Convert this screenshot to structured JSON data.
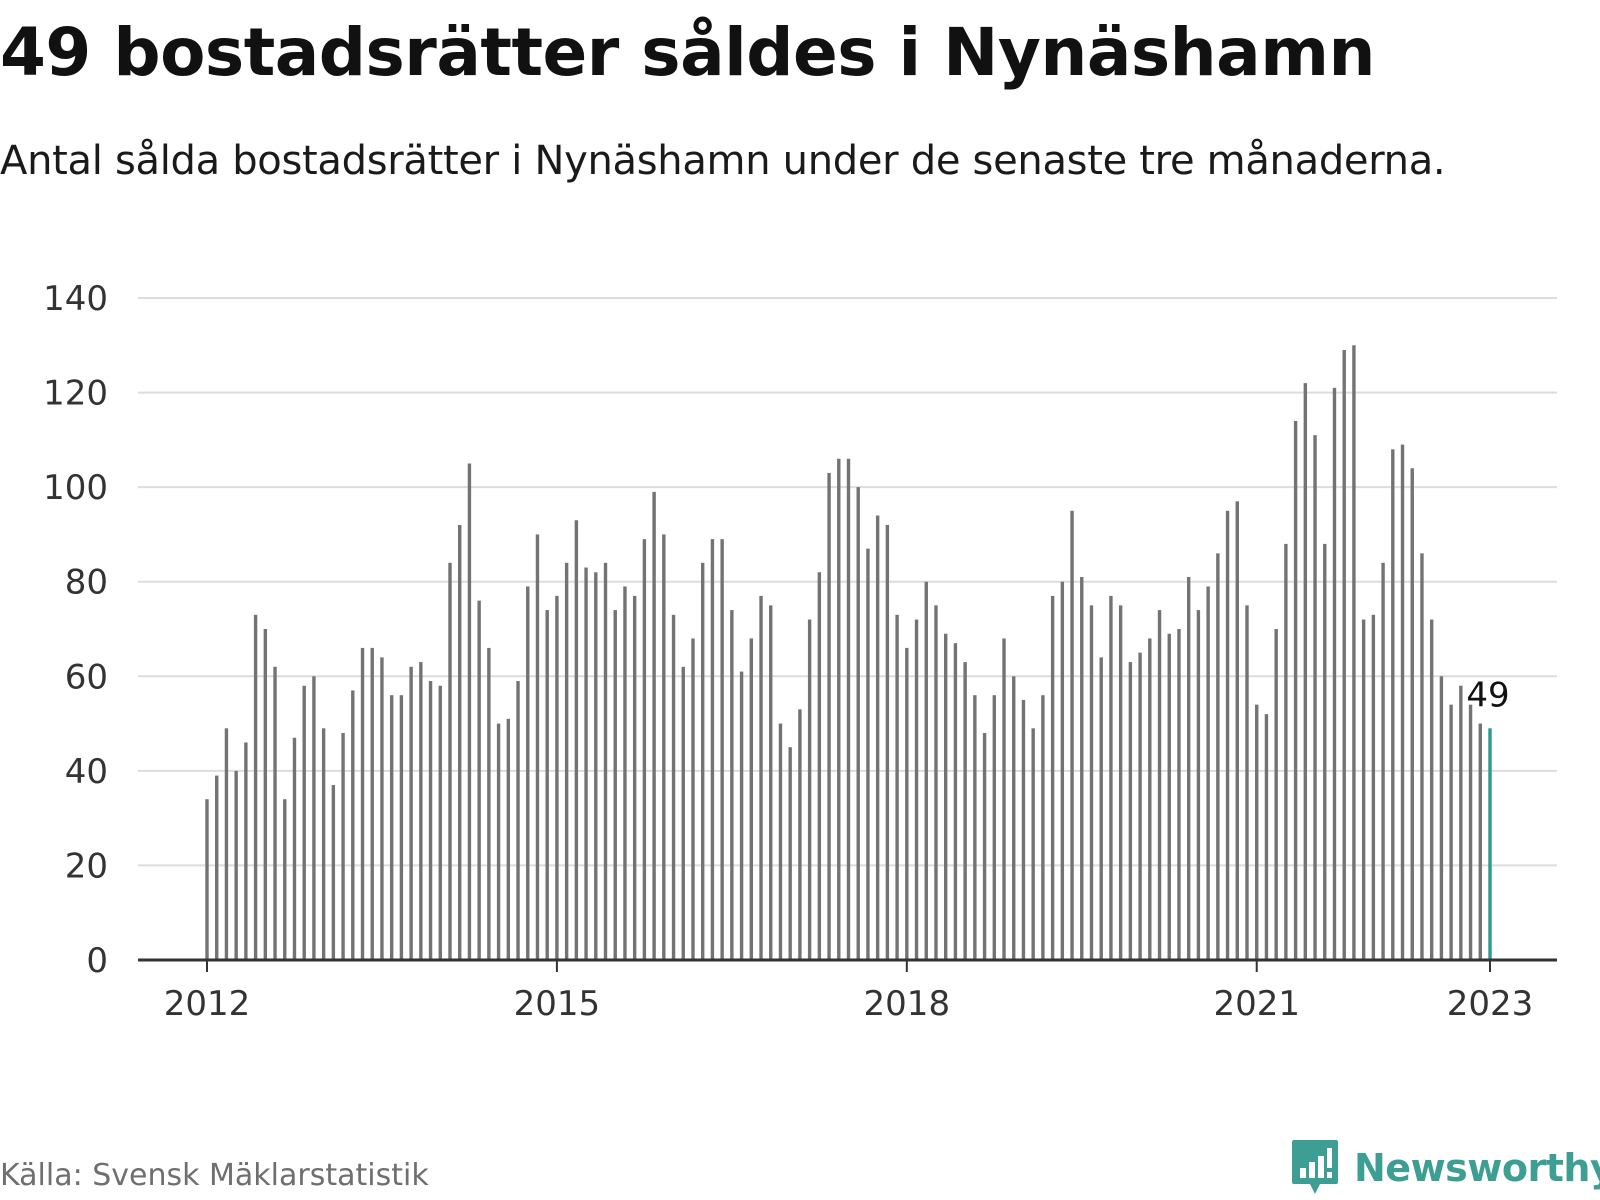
{
  "header": {
    "title": "49 bostadsrätter såldes i Nynäshamn",
    "subtitle": "Antal sålda bostadsrätter i Nynäshamn under de senaste tre månaderna."
  },
  "footer": {
    "source": "Källa: Svensk Mäklarstatistik",
    "brand": "Newsworthy"
  },
  "colors": {
    "bar": "#737373",
    "highlight": "#2a9d8f",
    "grid": "#dddddd",
    "axis": "#333333",
    "brand": "#3d9f93"
  },
  "chart_data": {
    "type": "bar",
    "title": "49 bostadsrätter såldes i Nynäshamn",
    "subtitle": "Antal sålda bostadsrätter i Nynäshamn under de senaste tre månaderna.",
    "xlabel": "",
    "ylabel": "",
    "ylim": [
      0,
      140
    ],
    "yticks": [
      0,
      20,
      40,
      60,
      80,
      100,
      120,
      140
    ],
    "xticks": [
      {
        "label": "2012",
        "date": "2012-01"
      },
      {
        "label": "2015",
        "date": "2015-01"
      },
      {
        "label": "2018",
        "date": "2018-01"
      },
      {
        "label": "2021",
        "date": "2021-01"
      },
      {
        "label": "2023",
        "date": "2023-01"
      }
    ],
    "grid": true,
    "start": "2012-01",
    "end": "2023-01",
    "values": [
      34,
      39,
      49,
      40,
      46,
      73,
      70,
      62,
      34,
      47,
      58,
      60,
      49,
      37,
      48,
      57,
      66,
      66,
      64,
      56,
      56,
      62,
      63,
      59,
      58,
      84,
      92,
      105,
      76,
      66,
      50,
      51,
      59,
      79,
      90,
      74,
      77,
      84,
      93,
      83,
      82,
      84,
      74,
      79,
      77,
      89,
      99,
      90,
      73,
      62,
      68,
      84,
      89,
      89,
      74,
      61,
      68,
      77,
      75,
      50,
      45,
      53,
      72,
      82,
      103,
      106,
      106,
      100,
      87,
      94,
      92,
      73,
      66,
      72,
      80,
      75,
      69,
      67,
      63,
      56,
      48,
      56,
      68,
      60,
      55,
      49,
      56,
      77,
      80,
      95,
      81,
      75,
      64,
      77,
      75,
      63,
      65,
      68,
      74,
      69,
      70,
      81,
      74,
      79,
      86,
      95,
      97,
      75,
      54,
      52,
      70,
      88,
      114,
      122,
      111,
      88,
      121,
      129,
      130,
      72,
      73,
      84,
      108,
      109,
      104,
      86,
      72,
      60,
      54,
      58,
      54,
      50,
      49
    ],
    "highlight": {
      "index": 132,
      "label": "49",
      "value": 49
    }
  }
}
